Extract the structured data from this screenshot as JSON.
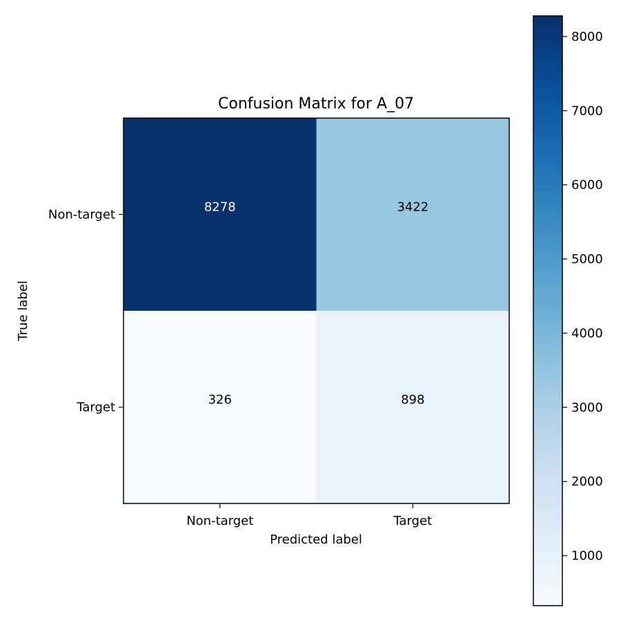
{
  "chart_data": {
    "type": "heatmap",
    "title": "Confusion Matrix for A_07",
    "xlabel": "Predicted label",
    "ylabel": "True label",
    "x_categories": [
      "Non-target",
      "Target"
    ],
    "y_categories": [
      "Non-target",
      "Target"
    ],
    "values": [
      [
        8278,
        3422
      ],
      [
        326,
        898
      ]
    ],
    "colormap": "Blues",
    "colorbar": {
      "range": [
        326,
        8278
      ],
      "ticks": [
        1000,
        2000,
        3000,
        4000,
        5000,
        6000,
        7000,
        8000
      ],
      "tick_labels": [
        "1000",
        "2000",
        "3000",
        "4000",
        "5000",
        "6000",
        "7000",
        "8000"
      ]
    },
    "text_color_light": "#ffffff",
    "text_color_dark": "#000000"
  }
}
